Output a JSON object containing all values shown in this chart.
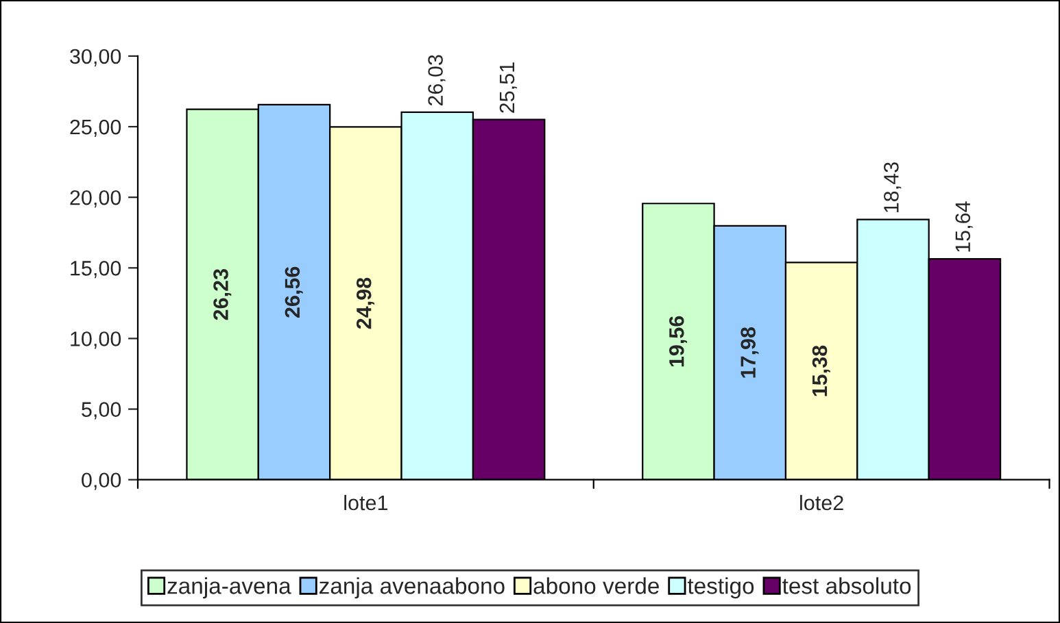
{
  "chart_data": {
    "type": "bar",
    "categories": [
      "lote1",
      "lote2"
    ],
    "series": [
      {
        "name": "zanja-avena",
        "color": "#ccffcc",
        "values": [
          26.23,
          19.56
        ],
        "value_labels": [
          "26,23",
          "19,56"
        ]
      },
      {
        "name": "zanja avenaabono",
        "color": "#99ccff",
        "values": [
          26.56,
          17.98
        ],
        "value_labels": [
          "26,56",
          "17,98"
        ]
      },
      {
        "name": "abono verde",
        "color": "#ffffcc",
        "values": [
          24.98,
          15.38
        ],
        "value_labels": [
          "24,98",
          "15,38"
        ]
      },
      {
        "name": "testigo",
        "color": "#ccffff",
        "values": [
          26.03,
          18.43
        ],
        "value_labels": [
          "26,03",
          "18,43"
        ]
      },
      {
        "name": "test absoluto",
        "color": "#660066",
        "values": [
          25.51,
          15.64
        ],
        "value_labels": [
          "25,51",
          "15,64"
        ]
      }
    ],
    "ylim": [
      0,
      30
    ],
    "yticks": [
      {
        "value": 0,
        "label": "0,00"
      },
      {
        "value": 5,
        "label": "5,00"
      },
      {
        "value": 10,
        "label": "10,00"
      },
      {
        "value": 15,
        "label": "15,00"
      },
      {
        "value": 20,
        "label": "20,00"
      },
      {
        "value": 25,
        "label": "25,00"
      },
      {
        "value": 30,
        "label": "30,00"
      }
    ],
    "grid": false,
    "legend": "bottom"
  }
}
